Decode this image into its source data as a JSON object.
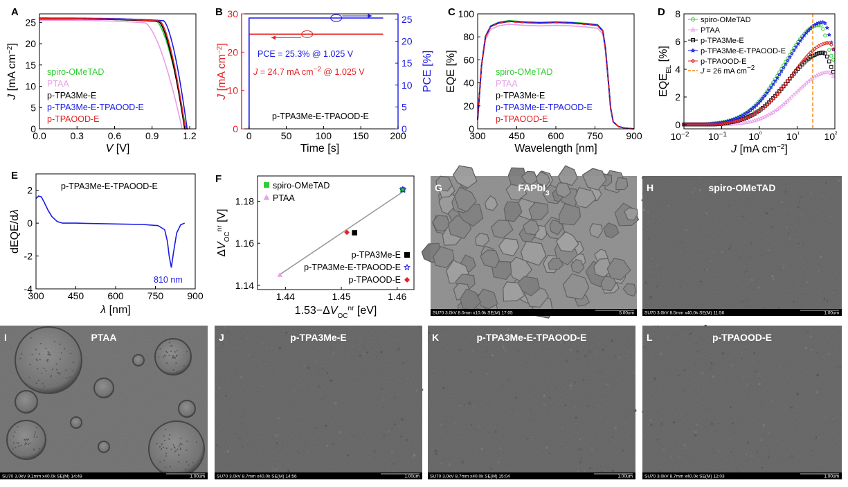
{
  "colors": {
    "spiro": "#33cc33",
    "ptaa": "#e8a0e8",
    "e": "#000000",
    "tpaood_e": "#1a1ae6",
    "tpaood": "#e62020",
    "orange": "#f28c1a",
    "fit": "#999999"
  },
  "chart_data": [
    {
      "id": "A",
      "type": "line",
      "panel_label": "A",
      "xlabel": "V [V]",
      "ylabel": "J [mA cm−2]",
      "xlim": [
        0,
        1.25
      ],
      "ylim": [
        0,
        27
      ],
      "xticks": [
        "0.0",
        "0.3",
        "0.6",
        "0.9",
        "1.2"
      ],
      "xtick_values": [
        0,
        0.3,
        0.6,
        0.9,
        1.2
      ],
      "yticks": [
        "0",
        "5",
        "10",
        "15",
        "20",
        "25"
      ],
      "ytick_values": [
        0,
        5,
        10,
        15,
        20,
        25
      ],
      "legend": [
        "spiro-OMeTAD",
        "PTAA",
        "p-TPA3Me-E",
        "p-TPA3Me-E-TPAOOD-E",
        "p-TPAOOD-E"
      ],
      "series": [
        {
          "name": "spiro-OMeTAD",
          "color": "#33cc33",
          "jsc": 25.9,
          "voc": 1.17,
          "knee": 0.93
        },
        {
          "name": "PTAA",
          "color": "#e8a0e8",
          "jsc": 25.5,
          "voc": 1.14,
          "knee": 0.84
        },
        {
          "name": "p-TPA3Me-E",
          "color": "#000000",
          "jsc": 25.8,
          "voc": 1.16,
          "knee": 0.95
        },
        {
          "name": "p-TPA3Me-E-TPAOOD-E",
          "color": "#1a1ae6",
          "jsc": 26.0,
          "voc": 1.18,
          "knee": 0.99
        },
        {
          "name": "p-TPAOOD-E",
          "color": "#e62020",
          "jsc": 25.9,
          "voc": 1.165,
          "knee": 0.96
        }
      ]
    },
    {
      "id": "B",
      "type": "line",
      "panel_label": "B",
      "xlabel": "Time [s]",
      "ylabel_left": "J [mA cm−2]",
      "ylabel_right": "PCE [%]",
      "xlim": [
        -10,
        200
      ],
      "ylim_left": [
        0,
        30
      ],
      "ylim_right": [
        0,
        26.25
      ],
      "xticks": [
        "0",
        "50",
        "100",
        "150",
        "200"
      ],
      "xtick_values": [
        0,
        50,
        100,
        150,
        200
      ],
      "yticks_left": [
        "0",
        "10",
        "20",
        "30"
      ],
      "ytick_left_values": [
        0,
        10,
        20,
        30
      ],
      "yticks_right": [
        "0",
        "5",
        "10",
        "15",
        "20",
        "25"
      ],
      "ytick_right_values": [
        0,
        5,
        10,
        15,
        20,
        25
      ],
      "annotations": [
        "PCE = 25.3% @ 1.025 V",
        "J = 24.7 mA cm−2 @ 1.025 V",
        "p-TPA3Me-E-TPAOOD-E"
      ],
      "series": [
        {
          "name": "J",
          "color": "#e62020",
          "x": [
            0,
            0,
            180
          ],
          "y": [
            0,
            24.7,
            24.7
          ]
        },
        {
          "name": "PCE",
          "color": "#1a1ae6",
          "x": [
            0,
            0,
            180
          ],
          "y": [
            0,
            25.3,
            25.3
          ]
        }
      ]
    },
    {
      "id": "C",
      "type": "line",
      "panel_label": "C",
      "xlabel": "Wavelength [nm]",
      "ylabel": "EQE [%]",
      "xlim": [
        300,
        900
      ],
      "ylim": [
        0,
        100
      ],
      "xticks": [
        "300",
        "450",
        "600",
        "750",
        "900"
      ],
      "xtick_values": [
        300,
        450,
        600,
        750,
        900
      ],
      "yticks": [
        "0",
        "20",
        "40",
        "60",
        "80",
        "100"
      ],
      "ytick_values": [
        0,
        20,
        40,
        60,
        80,
        100
      ],
      "legend": [
        "spiro-OMeTAD",
        "PTAA",
        "p-TPA3Me-E",
        "p-TPA3Me-E-TPAOOD-E",
        "p-TPAOOD-E"
      ],
      "x": [
        300,
        315,
        330,
        350,
        380,
        420,
        480,
        540,
        600,
        660,
        720,
        760,
        780,
        790,
        800,
        810,
        820,
        840,
        870,
        900
      ],
      "y": [
        8,
        55,
        80,
        89,
        92,
        93.5,
        92.5,
        92,
        92.5,
        92,
        91,
        90,
        85,
        70,
        45,
        18,
        6,
        2,
        0.5,
        0
      ]
    },
    {
      "id": "D",
      "type": "scatter",
      "panel_label": "D",
      "xlabel": "J [mA cm−2]",
      "ylabel": "EQE_EL [%]",
      "xscale": "log",
      "xlim": [
        0.01,
        100
      ],
      "ylim": [
        -0.3,
        8
      ],
      "xticks": [
        "10−2",
        "10−1",
        "10⁰",
        "10¹",
        "10²"
      ],
      "xtick_values": [
        0.01,
        0.1,
        1,
        10,
        100
      ],
      "yticks": [
        "0",
        "2",
        "4",
        "6",
        "8"
      ],
      "ytick_values": [
        0,
        2,
        4,
        6,
        8
      ],
      "legend": [
        "spiro-OMeTAD",
        "PTAA",
        "p-TPA3Me-E",
        "p-TPA3Me-E-TPAOOD-E",
        "p-TPAOOD-E",
        "J = 26 mA cm−2"
      ],
      "vline": 26,
      "series": [
        {
          "name": "spiro-OMeTAD",
          "color": "#33cc33",
          "peak": 7.2,
          "peakx": 40,
          "onset": 0.05,
          "w": 1.4
        },
        {
          "name": "PTAA",
          "color": "#e8a0e8",
          "peak": 3.8,
          "peakx": 70,
          "onset": 0.2,
          "w": 1.3
        },
        {
          "name": "p-TPA3Me-E",
          "color": "#000000",
          "peak": 5.2,
          "peakx": 50,
          "onset": 0.12,
          "w": 1.4
        },
        {
          "name": "p-TPA3Me-E-TPAOOD-E",
          "color": "#1a1ae6",
          "peak": 7.4,
          "peakx": 50,
          "onset": 0.05,
          "w": 1.45
        },
        {
          "name": "p-TPAOOD-E",
          "color": "#e62020",
          "peak": 5.9,
          "peakx": 70,
          "onset": 0.12,
          "w": 1.45
        }
      ]
    },
    {
      "id": "E",
      "type": "line",
      "panel_label": "E",
      "xlabel": "λ [nm]",
      "ylabel": "dEQE/dλ",
      "xlim": [
        300,
        900
      ],
      "ylim": [
        -4,
        3
      ],
      "xticks": [
        "300",
        "450",
        "600",
        "750",
        "900"
      ],
      "xtick_values": [
        300,
        450,
        600,
        750,
        900
      ],
      "yticks": [
        "-4",
        "-2",
        "0",
        "2"
      ],
      "ytick_values": [
        -4,
        -2,
        0,
        2
      ],
      "title": "p-TPA3Me-E-TPAOOD-E",
      "annotation": "810 nm",
      "x": [
        300,
        310,
        320,
        330,
        345,
        360,
        380,
        400,
        450,
        500,
        600,
        700,
        760,
        785,
        795,
        802,
        810,
        818,
        830,
        845,
        860
      ],
      "y": [
        1.5,
        1.65,
        1.6,
        1.3,
        0.8,
        0.4,
        0.1,
        0,
        0,
        -0.02,
        -0.05,
        -0.08,
        -0.15,
        -0.4,
        -1.1,
        -2.0,
        -2.7,
        -1.8,
        -0.6,
        -0.1,
        0
      ]
    },
    {
      "id": "F",
      "type": "scatter",
      "panel_label": "F",
      "xlabel": "1.53−ΔV_OC^nr [eV]",
      "ylabel": "ΔV_OC^nr [V]",
      "xlim": [
        1.435,
        1.463
      ],
      "ylim": [
        1.138,
        1.192
      ],
      "xticks": [
        "1.44",
        "1.45",
        "1.46"
      ],
      "xtick_values": [
        1.44,
        1.45,
        1.46
      ],
      "yticks": [
        "1.14",
        "1.16",
        "1.18"
      ],
      "ytick_values": [
        1.14,
        1.16,
        1.18
      ],
      "legend": [
        "spiro-OMeTAD",
        "PTAA",
        "p-TPA3Me-E",
        "p-TPA3Me-E-TPAOOD-E",
        "p-TPAOOD-E"
      ],
      "fit": [
        [
          1.4388,
          1.1448
        ],
        [
          1.4612,
          1.1848
        ]
      ],
      "points": [
        {
          "name": "spiro-OMeTAD",
          "x": 1.461,
          "y": 1.1855,
          "color": "#33cc33",
          "marker": "square"
        },
        {
          "name": "PTAA",
          "x": 1.439,
          "y": 1.145,
          "color": "#e8a0e8",
          "marker": "triangle"
        },
        {
          "name": "p-TPA3Me-E",
          "x": 1.452,
          "y": 1.165,
          "color": "#000000",
          "marker": "square"
        },
        {
          "name": "p-TPA3Me-E-TPAOOD-E",
          "x": 1.461,
          "y": 1.1855,
          "color": "#1a1ae6",
          "marker": "star"
        },
        {
          "name": "p-TPAOOD-E",
          "x": 1.451,
          "y": 1.1652,
          "color": "#e62020",
          "marker": "diamond"
        }
      ]
    }
  ],
  "sem": [
    {
      "label": "G",
      "caption": "FAPbI",
      "caption_sub": "3",
      "footer": "SU70 3.0kV 8.0mm x10.0k SE(M) 17:05",
      "scale": "5.00um",
      "style": "grains"
    },
    {
      "label": "H",
      "caption": "spiro-OMeTAD",
      "caption_sub": "",
      "footer": "SU70 3.0kV 8.5mm x40.0k SE(M) 11:56",
      "scale": "1.00um",
      "style": "smooth"
    },
    {
      "label": "I",
      "caption": "PTAA",
      "caption_sub": "",
      "footer": "SU70 3.0kV 9.1mm x40.0k SE(M) 14:49",
      "scale": "1.00um",
      "style": "blobs"
    },
    {
      "label": "J",
      "caption": "p-TPA3Me-E",
      "caption_sub": "",
      "footer": "SU70 3.0kV 8.7mm x40.0k SE(M) 14:56",
      "scale": "1.00um",
      "style": "smooth"
    },
    {
      "label": "K",
      "caption": "p-TPA3Me-E-TPAOOD-E",
      "caption_sub": "",
      "footer": "SU70 3.0kV 8.7mm x40.0k SE(M) 15:04",
      "scale": "1.00um",
      "style": "smooth"
    },
    {
      "label": "L",
      "caption": "p-TPAOOD-E",
      "caption_sub": "",
      "footer": "SU70 3.0kV 8.7mm x40.0k SE(M) 12:03",
      "scale": "1.00um",
      "style": "smooth"
    }
  ]
}
